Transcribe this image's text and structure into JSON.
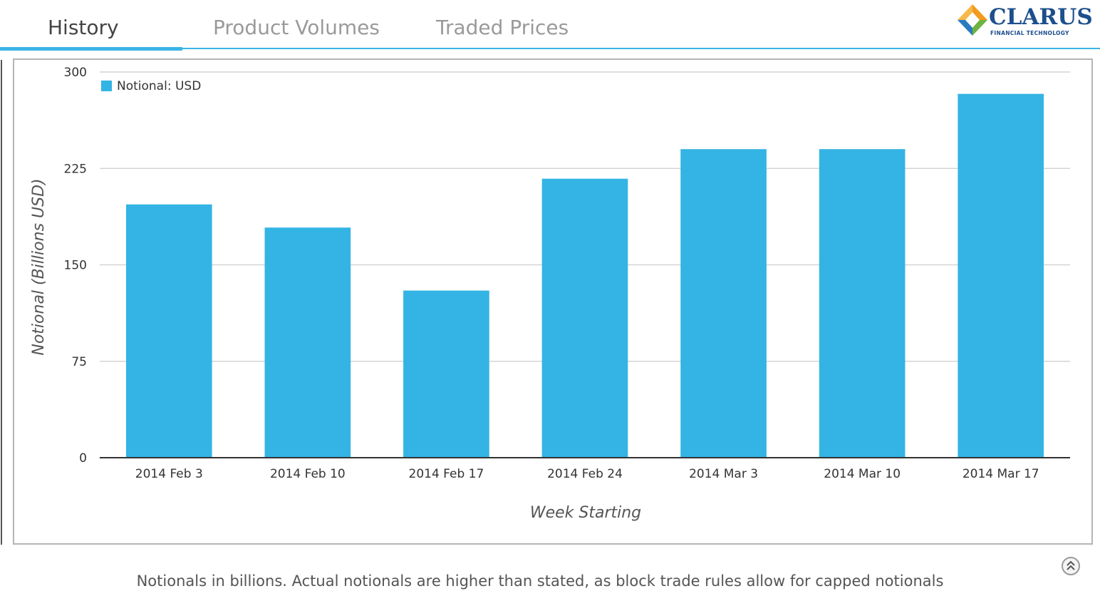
{
  "tabs": [
    {
      "label": "History",
      "active": true
    },
    {
      "label": "Product Volumes",
      "active": false
    },
    {
      "label": "Traded Prices",
      "active": false
    }
  ],
  "logo": {
    "name": "CLARUS",
    "tagline": "FINANCIAL TECHNOLOGY",
    "icon": "clarus-diamond-icon"
  },
  "colors": {
    "accent": "#3ab4e6",
    "bar": "#33b4e4",
    "axis": "#333333",
    "grid": "#d4d4d4"
  },
  "chart_data": {
    "type": "bar",
    "categories": [
      "2014 Feb 3",
      "2014 Feb 10",
      "2014 Feb 17",
      "2014 Feb 24",
      "2014 Mar 3",
      "2014 Mar 10",
      "2014 Mar 17"
    ],
    "series": [
      {
        "name": "Notional: USD",
        "values": [
          197,
          179,
          130,
          217,
          240,
          240,
          283
        ]
      }
    ],
    "ylabel": "Notional (Billions USD)",
    "xlabel": "Week Starting",
    "ylim": [
      0,
      300
    ],
    "yticks": [
      0,
      75,
      150,
      225,
      300
    ],
    "grid": true,
    "legend": "top-left"
  },
  "footnote": "Notionals in billions. Actual notionals are higher than stated, as block trade rules allow for capped notionals",
  "scroll_top_icon": "chevron-up-double-icon"
}
